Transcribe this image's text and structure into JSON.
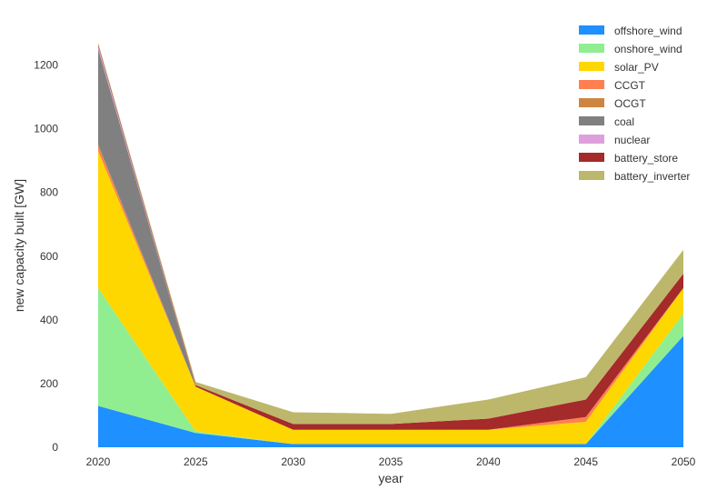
{
  "chart_data": {
    "type": "area",
    "stacked": true,
    "title": "",
    "xlabel": "year",
    "ylabel": "new capacity built [GW]",
    "x": [
      2020,
      2025,
      2030,
      2035,
      2040,
      2045,
      2050
    ],
    "xlim": [
      2020,
      2050
    ],
    "ylim": [
      0,
      1290
    ],
    "xticks": [
      "2020",
      "2025",
      "2030",
      "2035",
      "2040",
      "2045",
      "2050"
    ],
    "yticks": [
      "0",
      "200",
      "400",
      "600",
      "800",
      "1000",
      "1200"
    ],
    "grid": false,
    "legend_position": "top-right",
    "series": [
      {
        "name": "offshore_wind",
        "color": "#1e90ff",
        "values": [
          130,
          45,
          10,
          10,
          10,
          10,
          350
        ]
      },
      {
        "name": "onshore_wind",
        "color": "#90ee90",
        "values": [
          370,
          5,
          0,
          0,
          0,
          0,
          70
        ]
      },
      {
        "name": "solar_PV",
        "color": "#ffd700",
        "values": [
          430,
          140,
          45,
          45,
          45,
          70,
          80
        ]
      },
      {
        "name": "CCGT",
        "color": "#ff7f50",
        "values": [
          15,
          0,
          0,
          0,
          0,
          15,
          0
        ]
      },
      {
        "name": "OCGT",
        "color": "#cd853f",
        "values": [
          5,
          0,
          0,
          0,
          0,
          0,
          0
        ]
      },
      {
        "name": "coal",
        "color": "#808080",
        "values": [
          300,
          0,
          0,
          0,
          0,
          0,
          0
        ]
      },
      {
        "name": "nuclear",
        "color": "#dda0dd",
        "values": [
          10,
          0,
          0,
          0,
          0,
          0,
          0
        ]
      },
      {
        "name": "battery_store",
        "color": "#a52a2a",
        "values": [
          5,
          5,
          18,
          18,
          35,
          55,
          45
        ]
      },
      {
        "name": "battery_inverter",
        "color": "#bdb76b",
        "values": [
          5,
          10,
          37,
          32,
          60,
          70,
          75
        ]
      }
    ]
  }
}
